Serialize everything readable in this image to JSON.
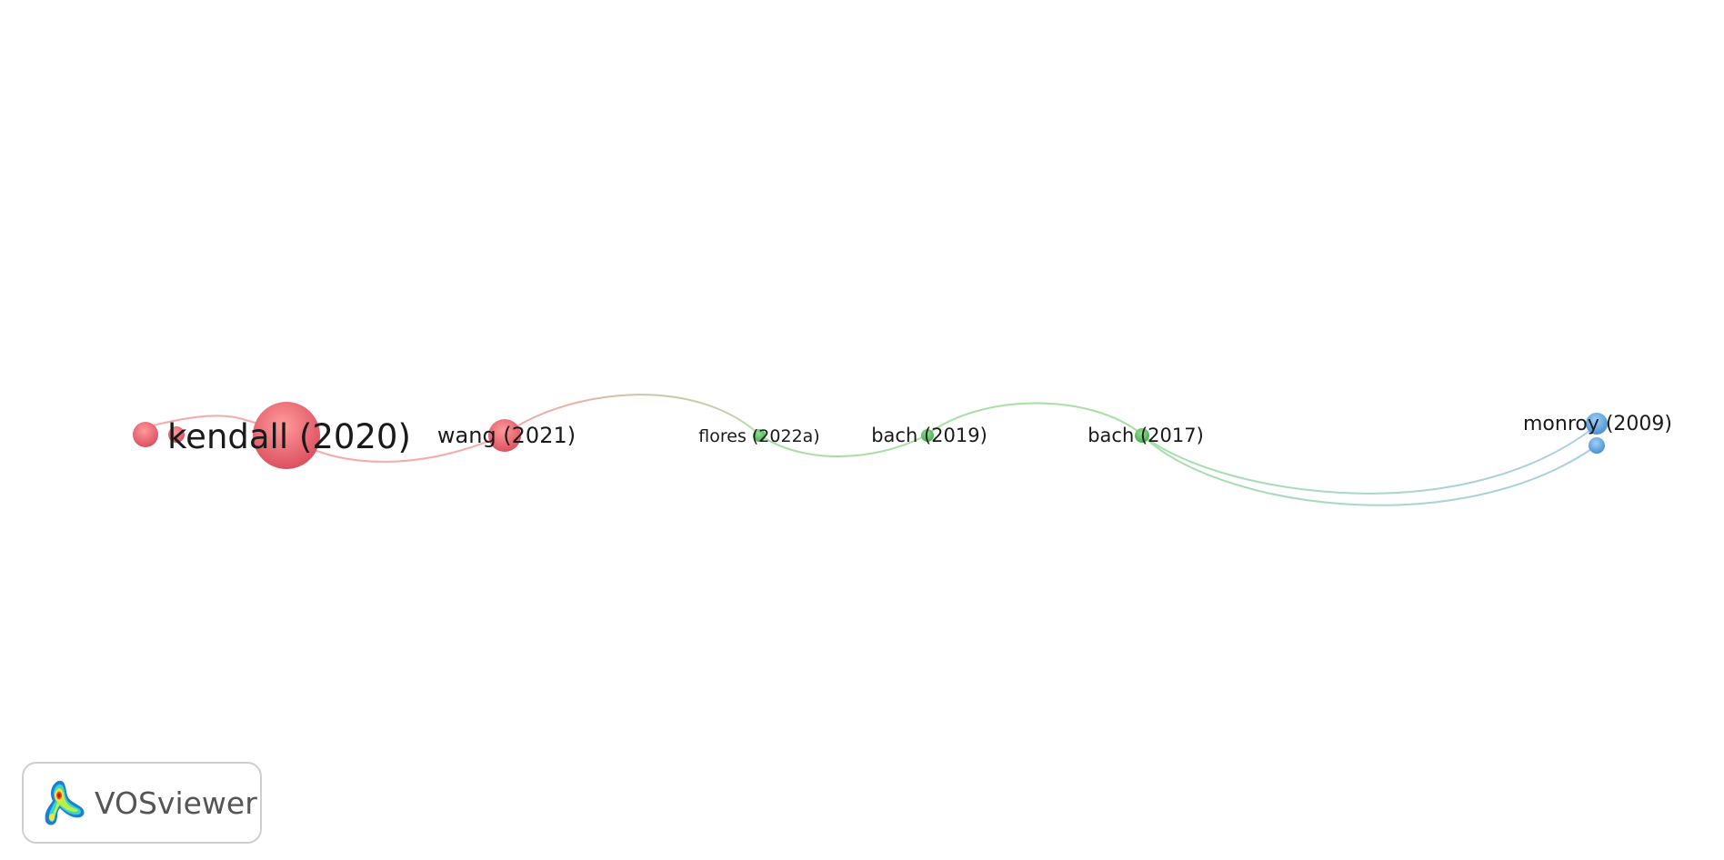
{
  "network": {
    "clusters": {
      "red": "#e05a66",
      "green": "#5dbb63",
      "blue": "#5a9fd8"
    },
    "nodes": [
      {
        "id": "n_red1",
        "label": "",
        "cluster": "red"
      },
      {
        "id": "n_red2",
        "label": "",
        "cluster": "red"
      },
      {
        "id": "kendall",
        "label": "kendall (2020)",
        "cluster": "red"
      },
      {
        "id": "wang",
        "label": "wang (2021)",
        "cluster": "red"
      },
      {
        "id": "flores",
        "label": "flores (2022a)",
        "cluster": "green"
      },
      {
        "id": "bach2019",
        "label": "bach (2019)",
        "cluster": "green"
      },
      {
        "id": "bach2017",
        "label": "bach (2017)",
        "cluster": "green"
      },
      {
        "id": "monroy",
        "label": "monroy (2009)",
        "cluster": "blue"
      },
      {
        "id": "n_blue2",
        "label": "",
        "cluster": "blue"
      }
    ],
    "links": [
      {
        "source": "n_red1",
        "target": "kendall"
      },
      {
        "source": "kendall",
        "target": "wang"
      },
      {
        "source": "wang",
        "target": "flores"
      },
      {
        "source": "flores",
        "target": "bach2019"
      },
      {
        "source": "bach2019",
        "target": "bach2017"
      },
      {
        "source": "bach2017",
        "target": "monroy"
      },
      {
        "source": "bach2017",
        "target": "n_blue2"
      }
    ]
  },
  "branding": {
    "logo_text": "VOSviewer",
    "logo_icon": "vosviewer-density-icon"
  }
}
